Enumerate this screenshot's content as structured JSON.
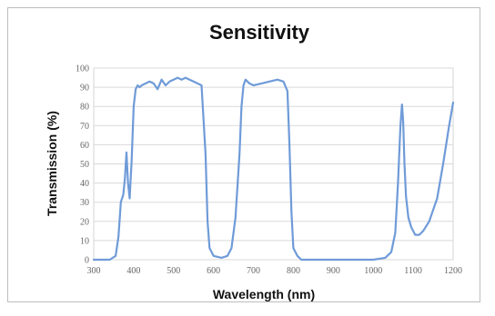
{
  "chart_data": {
    "type": "line",
    "title": "Sensitivity",
    "xlabel": "Wavelength (nm)",
    "ylabel": "Transmission (%)",
    "xlim": [
      300,
      1200
    ],
    "ylim": [
      0,
      100
    ],
    "x_ticks": [
      "300",
      "400",
      "500",
      "600",
      "700",
      "800",
      "900",
      "1000",
      "1100",
      "1200"
    ],
    "y_ticks": [
      "0",
      "10",
      "20",
      "30",
      "40",
      "50",
      "60",
      "70",
      "80",
      "90",
      "100"
    ],
    "grid": "horizontal",
    "legend": "none",
    "series": [
      {
        "color": "#6f9bd8",
        "x": [
          300,
          340,
          355,
          362,
          368,
          374,
          378,
          382,
          386,
          390,
          395,
          400,
          405,
          410,
          415,
          420,
          440,
          450,
          460,
          470,
          480,
          490,
          500,
          510,
          520,
          530,
          540,
          550,
          560,
          570,
          580,
          585,
          590,
          600,
          620,
          635,
          645,
          655,
          665,
          670,
          675,
          680,
          690,
          700,
          720,
          740,
          760,
          775,
          785,
          790,
          795,
          800,
          810,
          820,
          830,
          850,
          900,
          950,
          1000,
          1030,
          1045,
          1055,
          1062,
          1068,
          1072,
          1075,
          1078,
          1082,
          1088,
          1095,
          1105,
          1115,
          1125,
          1140,
          1160,
          1175,
          1190,
          1200
        ],
        "y": [
          0,
          0,
          2,
          12,
          30,
          34,
          42,
          56,
          40,
          32,
          52,
          80,
          89,
          91,
          90,
          91,
          93,
          92,
          89,
          94,
          91,
          93,
          94,
          95,
          94,
          95,
          94,
          93,
          92,
          91,
          55,
          20,
          6,
          2,
          1,
          2,
          6,
          22,
          55,
          80,
          91,
          94,
          92,
          91,
          92,
          93,
          94,
          93,
          88,
          60,
          25,
          6,
          2,
          0,
          0,
          0,
          0,
          0,
          0,
          1,
          4,
          14,
          40,
          70,
          81,
          72,
          50,
          33,
          22,
          17,
          13,
          13,
          15,
          20,
          32,
          50,
          70,
          82
        ]
      }
    ]
  }
}
